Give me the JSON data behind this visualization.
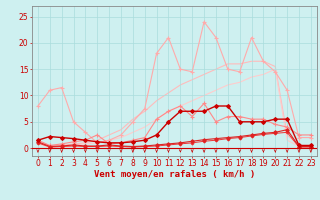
{
  "xlabel": "Vent moyen/en rafales ( km/h )",
  "x": [
    0,
    1,
    2,
    3,
    4,
    5,
    6,
    7,
    8,
    9,
    10,
    11,
    12,
    13,
    14,
    15,
    16,
    17,
    18,
    19,
    20,
    21,
    22,
    23
  ],
  "bg_color": "#cef0f0",
  "grid_color": "#aadddd",
  "series": [
    {
      "y": [
        8.0,
        11.0,
        11.5,
        5.0,
        3.0,
        1.0,
        1.5,
        2.5,
        5.0,
        7.5,
        18.0,
        21.0,
        15.0,
        14.5,
        24.0,
        21.0,
        15.0,
        14.5,
        21.0,
        16.5,
        14.5,
        11.0,
        2.0,
        2.0
      ],
      "color": "#ffaaaa",
      "marker": "+",
      "markersize": 3.5,
      "linewidth": 0.8,
      "zorder": 2
    },
    {
      "y": [
        1.5,
        0.5,
        0.8,
        1.2,
        1.5,
        2.5,
        0.8,
        1.0,
        1.5,
        2.0,
        5.5,
        7.0,
        8.0,
        6.0,
        8.5,
        5.0,
        6.0,
        6.0,
        5.5,
        5.5,
        4.5,
        4.0,
        2.5,
        2.5
      ],
      "color": "#ff8888",
      "marker": "+",
      "markersize": 3.0,
      "linewidth": 0.8,
      "zorder": 3
    },
    {
      "y": [
        1.2,
        0.3,
        0.5,
        0.8,
        1.0,
        1.5,
        2.5,
        3.5,
        5.5,
        7.0,
        9.0,
        10.5,
        12.0,
        13.0,
        14.0,
        15.0,
        16.0,
        16.0,
        16.5,
        16.5,
        15.5,
        2.5,
        0.5,
        0.5
      ],
      "color": "#ffbbbb",
      "marker": null,
      "markersize": 0,
      "linewidth": 0.8,
      "zorder": 1
    },
    {
      "y": [
        0.8,
        0.2,
        0.3,
        0.5,
        0.8,
        1.0,
        1.5,
        2.0,
        3.0,
        4.0,
        5.5,
        7.0,
        8.0,
        9.0,
        10.0,
        11.0,
        12.0,
        12.5,
        13.5,
        14.0,
        15.0,
        1.5,
        0.3,
        0.3
      ],
      "color": "#ffcccc",
      "marker": null,
      "markersize": 0,
      "linewidth": 0.8,
      "zorder": 1
    },
    {
      "y": [
        1.5,
        2.2,
        2.0,
        1.8,
        1.5,
        1.2,
        1.0,
        1.0,
        1.2,
        1.5,
        2.5,
        5.0,
        7.0,
        7.0,
        7.0,
        8.0,
        8.0,
        5.0,
        5.0,
        5.0,
        5.5,
        5.5,
        0.5,
        0.5
      ],
      "color": "#cc0000",
      "marker": "D",
      "markersize": 2.0,
      "linewidth": 1.0,
      "zorder": 5
    },
    {
      "y": [
        1.2,
        0.3,
        0.4,
        0.6,
        0.4,
        0.4,
        0.6,
        0.4,
        0.3,
        0.4,
        0.6,
        0.8,
        1.0,
        1.3,
        1.6,
        1.8,
        2.0,
        2.2,
        2.5,
        2.8,
        3.0,
        3.5,
        0.3,
        0.3
      ],
      "color": "#dd2222",
      "marker": "D",
      "markersize": 1.8,
      "linewidth": 0.8,
      "zorder": 4
    },
    {
      "y": [
        1.0,
        0.2,
        0.3,
        0.4,
        0.3,
        0.3,
        0.4,
        0.3,
        0.2,
        0.3,
        0.4,
        0.6,
        0.8,
        1.0,
        1.3,
        1.5,
        1.8,
        2.0,
        2.3,
        2.6,
        2.8,
        3.0,
        0.2,
        0.2
      ],
      "color": "#ee3333",
      "marker": "D",
      "markersize": 1.5,
      "linewidth": 0.7,
      "zorder": 3
    }
  ],
  "arrow_color": "#cc0000",
  "hline_color": "#cc0000",
  "ylim": [
    -1.5,
    27
  ],
  "yticks": [
    0,
    5,
    10,
    15,
    20,
    25
  ],
  "xticks": [
    0,
    1,
    2,
    3,
    4,
    5,
    6,
    7,
    8,
    9,
    10,
    11,
    12,
    13,
    14,
    15,
    16,
    17,
    18,
    19,
    20,
    21,
    22,
    23
  ],
  "tick_fontsize": 5.5,
  "xlabel_fontsize": 6.5,
  "xlabel_color": "#cc0000",
  "tick_color": "#cc0000",
  "spine_color": "#888888"
}
